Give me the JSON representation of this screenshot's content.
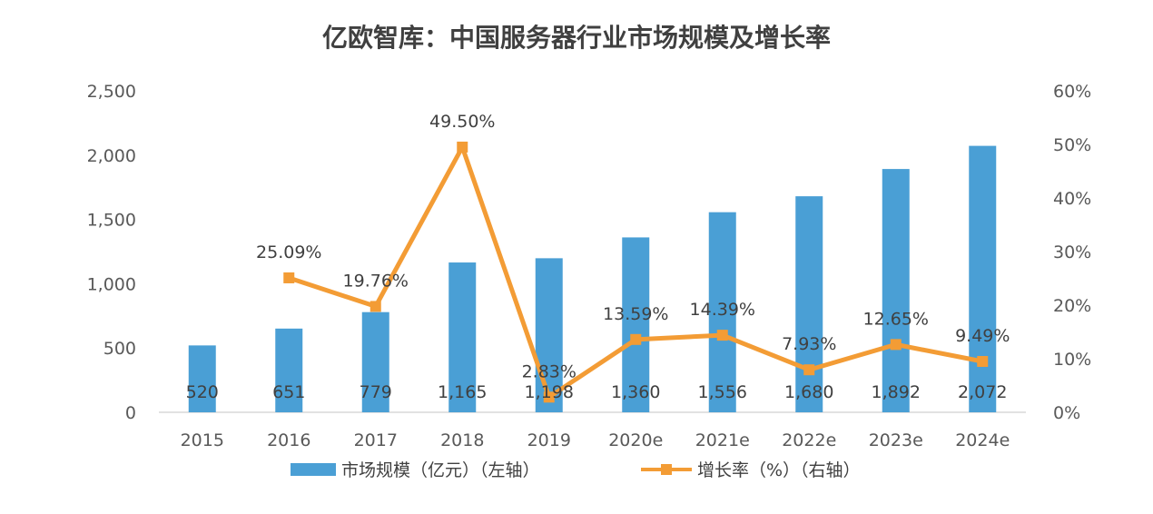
{
  "chart_data": {
    "type": "bar",
    "title": "亿欧智库：中国服务器行业市场规模及增长率",
    "categories": [
      "2015",
      "2016",
      "2017",
      "2018",
      "2019",
      "2020e",
      "2021e",
      "2022e",
      "2023e",
      "2024e"
    ],
    "series": [
      {
        "name": "市场规模（亿元）（左轴）",
        "type": "bar",
        "axis": "left",
        "values": [
          520,
          651,
          779,
          1165,
          1198,
          1360,
          1556,
          1680,
          1892,
          2072
        ],
        "labels": [
          "520",
          "651",
          "779",
          "1,165",
          "1,198",
          "1,360",
          "1,556",
          "1,680",
          "1,892",
          "2,072"
        ],
        "color": "#4a9fd5"
      },
      {
        "name": "增长率（%）（右轴）",
        "type": "line",
        "axis": "right",
        "values": [
          null,
          25.09,
          19.76,
          49.5,
          2.83,
          13.59,
          14.39,
          7.93,
          12.65,
          9.49
        ],
        "labels": [
          "",
          "25.09%",
          "19.76%",
          "49.50%",
          "2.83%",
          "13.59%",
          "14.39%",
          "7.93%",
          "12.65%",
          "9.49%"
        ],
        "color": "#f39c35"
      }
    ],
    "y_left": {
      "min": 0,
      "max": 2500,
      "ticks": [
        "0",
        "500",
        "1,000",
        "1,500",
        "2,000",
        "2,500"
      ]
    },
    "y_right": {
      "min": 0,
      "max": 60,
      "ticks": [
        "0%",
        "10%",
        "20%",
        "30%",
        "40%",
        "50%",
        "60%"
      ]
    },
    "grid": false,
    "legend": "bottom"
  }
}
